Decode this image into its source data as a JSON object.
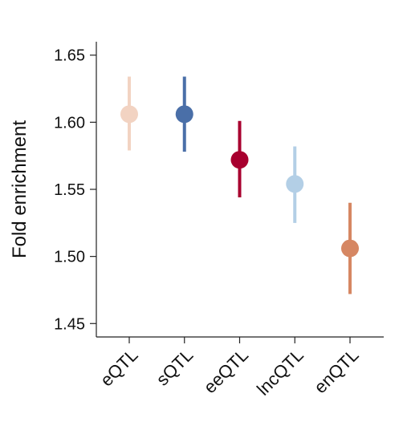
{
  "chart_data": {
    "type": "scatter",
    "title": "",
    "xlabel": "",
    "ylabel": "Fold enrichment",
    "ylim": [
      1.44,
      1.66
    ],
    "yticks": [
      1.45,
      1.5,
      1.55,
      1.6,
      1.65
    ],
    "ytick_labels": [
      "1.45",
      "1.50",
      "1.55",
      "1.60",
      "1.65"
    ],
    "grid": false,
    "legend": "none",
    "categories": [
      "eQTL",
      "sQTL",
      "eeQTL",
      "lncQTL",
      "enQTL"
    ],
    "values": [
      1.606,
      1.606,
      1.572,
      1.554,
      1.506
    ],
    "error_low": [
      1.579,
      1.578,
      1.544,
      1.525,
      1.472
    ],
    "error_high": [
      1.634,
      1.634,
      1.601,
      1.582,
      1.54
    ],
    "colors": [
      "#f2d3c2",
      "#4a6fa8",
      "#a8002f",
      "#b3cfe6",
      "#d68763"
    ]
  }
}
